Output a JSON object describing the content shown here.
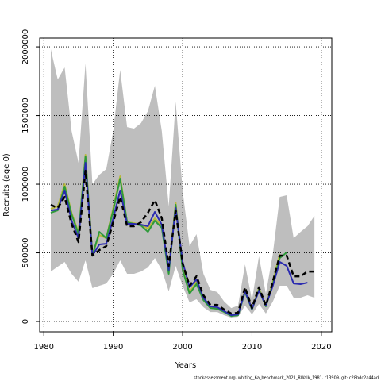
{
  "chart_data": {
    "type": "line",
    "x_label": "Years",
    "y_label": "Recruits (age 0)",
    "footer": "stockassessment.org, whiting_6a_benchmark_2021_RWalk_1981, r13909, git: c28bdc2a44ad",
    "x": [
      1981,
      1982,
      1983,
      1984,
      1985,
      1986,
      1987,
      1988,
      1989,
      1990,
      1991,
      1992,
      1993,
      1994,
      1995,
      1996,
      1997,
      1998,
      1999,
      2000,
      2001,
      2002,
      2003,
      2004,
      2005,
      2006,
      2007,
      2008,
      2009,
      2010,
      2011,
      2012,
      2013,
      2014,
      2015,
      2016,
      2017,
      2018,
      2019
    ],
    "band": {
      "color": "#bebebe",
      "upper": [
        1982000,
        1763000,
        1850000,
        1387000,
        1156000,
        1879000,
        1000000,
        1069000,
        1110000,
        1387000,
        1832000,
        1416000,
        1405000,
        1445000,
        1532000,
        1717000,
        1387000,
        838000,
        1601000,
        954000,
        549000,
        636000,
        347000,
        231000,
        214000,
        145000,
        98000,
        116000,
        416000,
        156000,
        474000,
        202000,
        491000,
        907000,
        919000,
        607000,
        653000,
        694000,
        769000
      ],
      "lower": [
        364000,
        399000,
        434000,
        347000,
        289000,
        445000,
        243000,
        260000,
        277000,
        347000,
        445000,
        347000,
        347000,
        364000,
        393000,
        462000,
        376000,
        220000,
        405000,
        260000,
        139000,
        162000,
        104000,
        69000,
        69000,
        46000,
        29000,
        35000,
        116000,
        52000,
        127000,
        58000,
        145000,
        260000,
        260000,
        173000,
        173000,
        191000,
        173000
      ]
    },
    "series": [
      {
        "color": "#000000",
        "dashed": true,
        "values": [
          850000,
          827000,
          907000,
          711000,
          578000,
          1098000,
          480000,
          520000,
          549000,
          723000,
          907000,
          694000,
          694000,
          723000,
          792000,
          884000,
          751000,
          405000,
          809000,
          422000,
          260000,
          329000,
          191000,
          121000,
          121000,
          87000,
          58000,
          64000,
          249000,
          98000,
          249000,
          116000,
          289000,
          480000,
          480000,
          329000,
          329000,
          364000,
          364000
        ]
      },
      {
        "color": "#2b2bb0",
        "dashed": false,
        "values": [
          809000,
          815000,
          954000,
          734000,
          607000,
          1156000,
          480000,
          561000,
          566000,
          751000,
          954000,
          711000,
          711000,
          705000,
          694000,
          798000,
          705000,
          376000,
          827000,
          434000,
          249000,
          306000,
          173000,
          110000,
          104000,
          75000,
          46000,
          52000,
          220000,
          92000,
          225000,
          116000,
          260000,
          434000,
          405000,
          277000,
          272000,
          283000,
          null
        ]
      },
      {
        "color": "#2e9a3a",
        "dashed": false,
        "values": [
          792000,
          809000,
          983000,
          780000,
          636000,
          1202000,
          480000,
          653000,
          607000,
          809000,
          1040000,
          723000,
          711000,
          699000,
          653000,
          734000,
          682000,
          347000,
          850000,
          376000,
          202000,
          272000,
          156000,
          98000,
          92000,
          69000,
          40000,
          46000,
          214000,
          87000,
          231000,
          110000,
          272000,
          462000,
          503000,
          null,
          null,
          null,
          null
        ]
      },
      {
        "color": "#b7b83c",
        "dashed": false,
        "values": [
          821000,
          838000,
          1000000,
          792000,
          647000,
          1214000,
          491000,
          630000,
          607000,
          827000,
          1058000,
          723000,
          717000,
          705000,
          676000,
          751000,
          699000,
          364000,
          867000,
          387000,
          214000,
          289000,
          162000,
          104000,
          98000,
          75000,
          46000,
          52000,
          231000,
          92000,
          243000,
          116000,
          289000,
          491000,
          null,
          null,
          null,
          null,
          null
        ]
      }
    ],
    "xlim": [
      1979.4,
      2021.5
    ],
    "ylim": [
      -75000,
      2064000
    ],
    "xticks": [
      1980,
      1990,
      2000,
      2010,
      2020
    ],
    "yticks": [
      0,
      500000,
      1000000,
      1500000,
      2000000
    ],
    "grid": true
  }
}
